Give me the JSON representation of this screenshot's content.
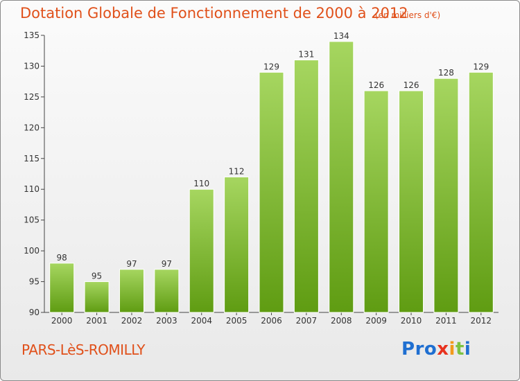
{
  "title": "Dotation Globale de Fonctionnement de 2000 à 2012",
  "unit_note": "(en milliers d'€)",
  "place_name": "PARS-LèS-ROMILLY",
  "logo": {
    "text": "Proxiti",
    "letters": [
      {
        "ch": "P",
        "color": "#1f6fd1"
      },
      {
        "ch": "r",
        "color": "#1f6fd1"
      },
      {
        "ch": "o",
        "color": "#1f6fd1"
      },
      {
        "ch": "x",
        "color": "#e8321e"
      },
      {
        "ch": "i",
        "color": "#f29a1b"
      },
      {
        "ch": "t",
        "color": "#7cc242"
      },
      {
        "ch": "i",
        "color": "#1f6fd1"
      }
    ]
  },
  "colors": {
    "bar_top": "#a6d660",
    "bar_bottom": "#5f9c12",
    "accent": "#e0501a"
  },
  "chart_data": {
    "type": "bar",
    "title": "Dotation Globale de Fonctionnement de 2000 à 2012",
    "categories": [
      "2000",
      "2001",
      "2002",
      "2003",
      "2004",
      "2005",
      "2006",
      "2007",
      "2008",
      "2009",
      "2010",
      "2011",
      "2012"
    ],
    "values": [
      98,
      95,
      97,
      97,
      110,
      112,
      129,
      131,
      134,
      126,
      126,
      128,
      129
    ],
    "ylim": [
      90,
      135
    ],
    "yticks": [
      90,
      95,
      100,
      105,
      110,
      115,
      120,
      125,
      130,
      135
    ],
    "xlabel": "",
    "ylabel": "",
    "grid": false,
    "legend": "none"
  }
}
